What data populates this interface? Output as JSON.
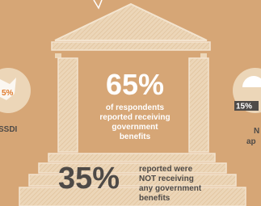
{
  "main": {
    "big_stat": "65%",
    "caption": [
      "of respondents",
      "reported receiving",
      "government",
      "benefits"
    ]
  },
  "lower": {
    "big_stat": "35%",
    "caption": [
      "reported were",
      "NOT receiving",
      "any government",
      "benefits"
    ]
  },
  "left_item": {
    "stat": "5%",
    "label": "SSDI"
  },
  "right_item": {
    "stat": "15%",
    "label": [
      "N",
      "ap"
    ]
  }
}
